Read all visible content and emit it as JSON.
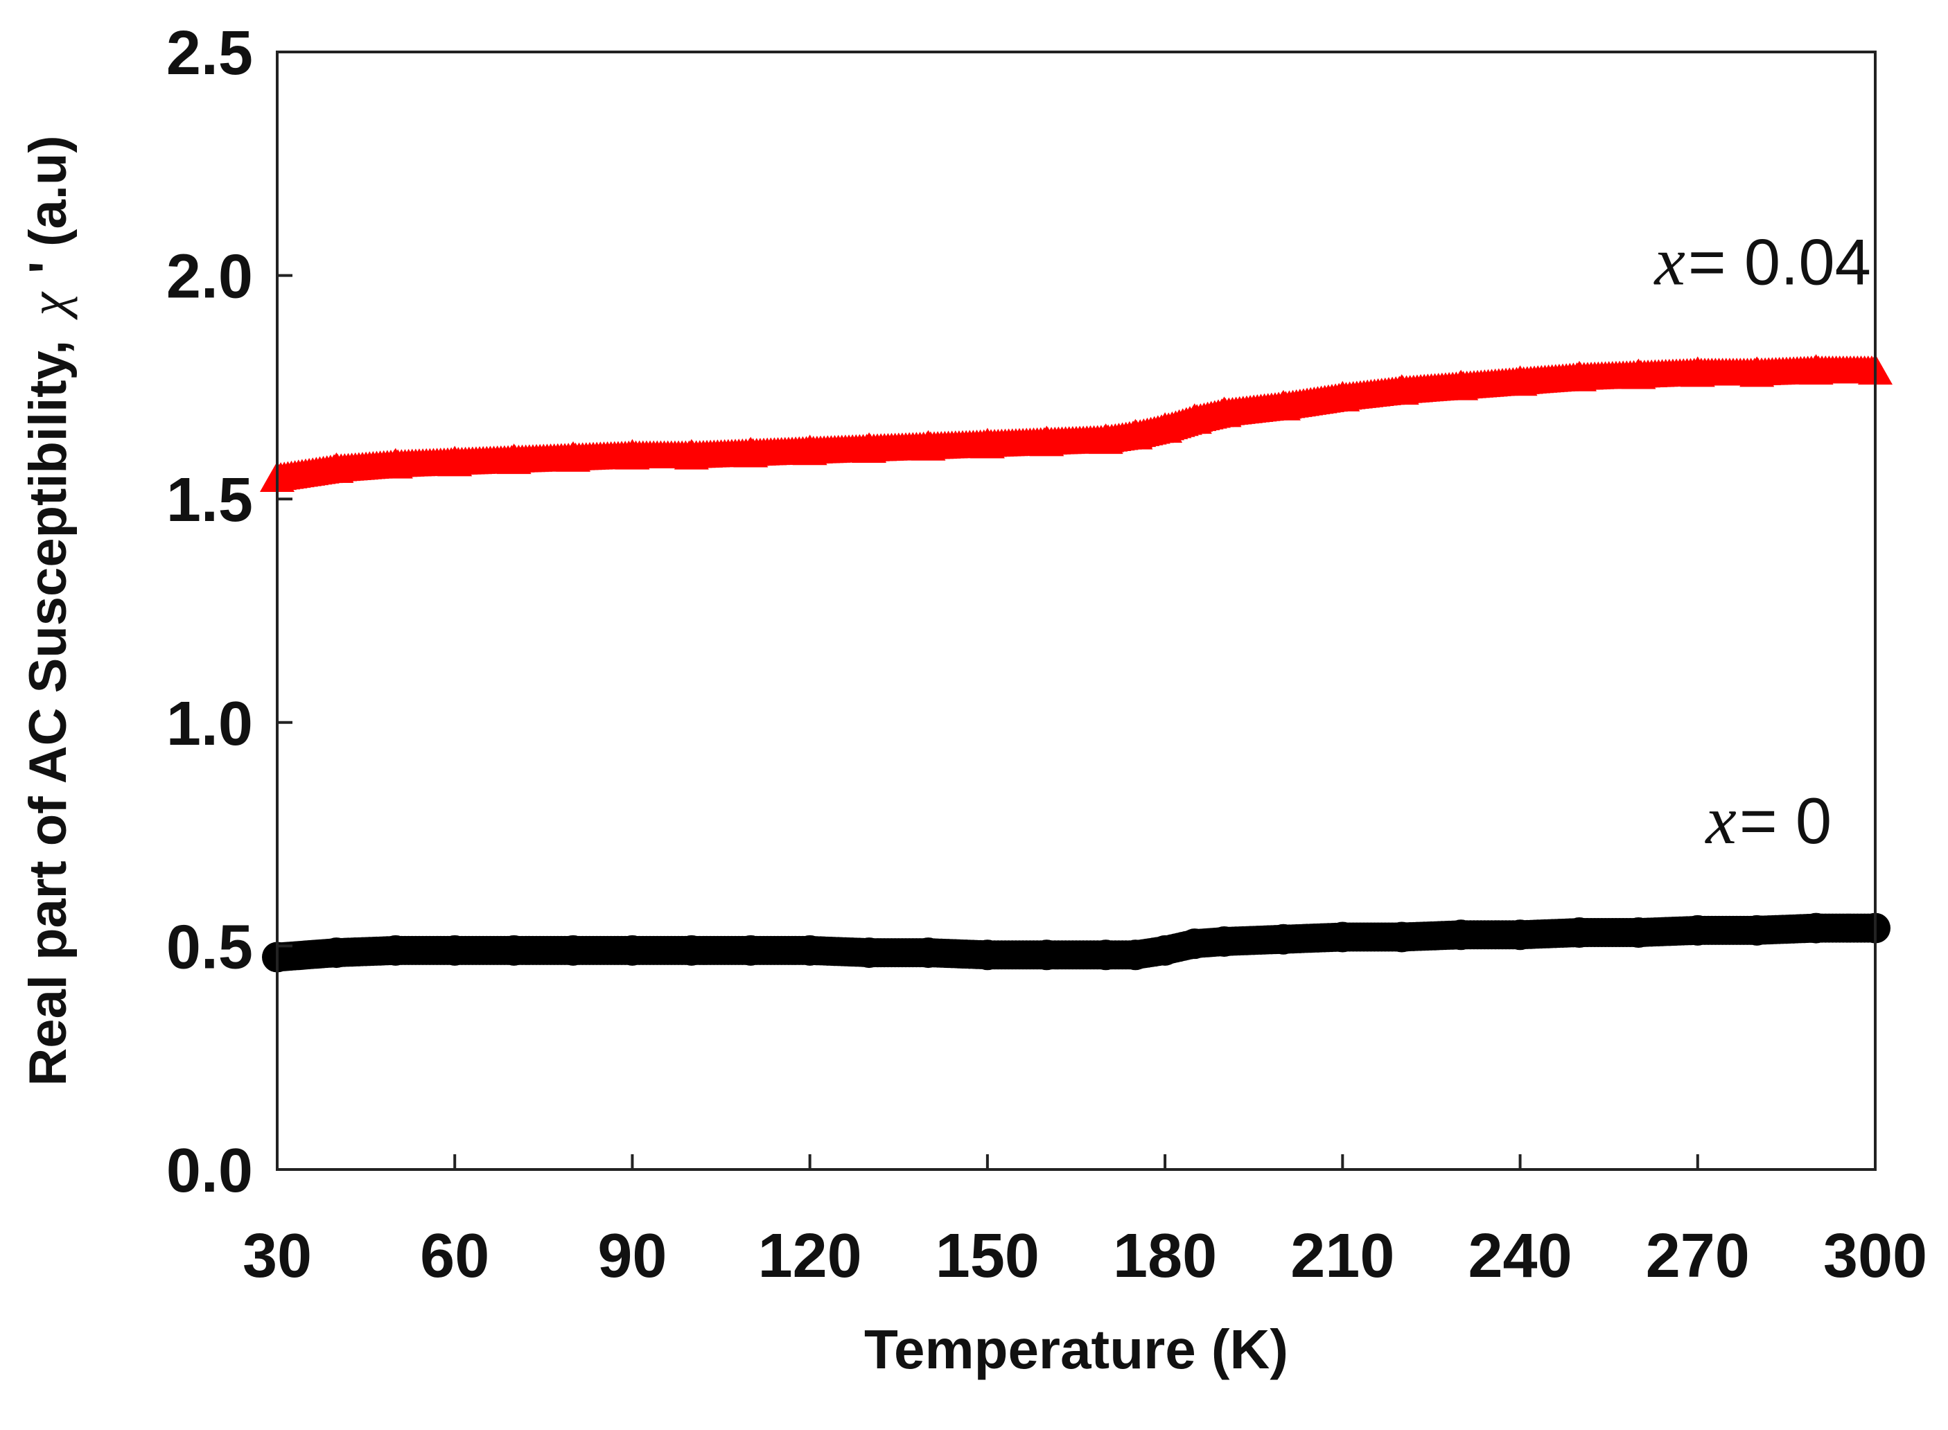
{
  "chart_data": {
    "type": "scatter",
    "title": "",
    "xlabel": "Temperature (K)",
    "ylabel": {
      "prefix": "Real part of AC Susceptibility,",
      "symbol": "χ",
      "suffix": "' (a.u)"
    },
    "xlim": [
      30,
      300
    ],
    "ylim": [
      0.0,
      2.5
    ],
    "x_ticks": [
      30,
      60,
      90,
      120,
      150,
      180,
      210,
      240,
      270,
      300
    ],
    "x_tick_labels": [
      "30",
      "60",
      "90",
      "120",
      "150",
      "180",
      "210",
      "240",
      "270",
      "300"
    ],
    "y_ticks": [
      0.0,
      0.5,
      1.0,
      1.5,
      2.0,
      2.5
    ],
    "y_tick_labels": [
      "0.0",
      "0.5",
      "1.0",
      "1.5",
      "2.0",
      "2.5"
    ],
    "grid": false,
    "series": [
      {
        "name": "x = 0.04",
        "marker": "triangle",
        "color": "#ff0000",
        "x": [
          30,
          40,
          50,
          60,
          70,
          80,
          90,
          100,
          110,
          120,
          130,
          140,
          150,
          160,
          170,
          175,
          180,
          185,
          190,
          200,
          210,
          220,
          230,
          240,
          250,
          260,
          270,
          280,
          290,
          300
        ],
        "y": [
          1.55,
          1.57,
          1.58,
          1.585,
          1.59,
          1.595,
          1.6,
          1.6,
          1.605,
          1.61,
          1.615,
          1.62,
          1.625,
          1.63,
          1.635,
          1.645,
          1.66,
          1.68,
          1.695,
          1.71,
          1.73,
          1.745,
          1.755,
          1.765,
          1.775,
          1.78,
          1.785,
          1.785,
          1.79,
          1.79
        ]
      },
      {
        "name": "x = 0",
        "marker": "circle",
        "color": "#000000",
        "x": [
          30,
          40,
          50,
          60,
          70,
          80,
          90,
          100,
          110,
          120,
          130,
          140,
          150,
          160,
          170,
          175,
          180,
          185,
          190,
          200,
          210,
          220,
          230,
          240,
          250,
          260,
          270,
          280,
          290,
          300
        ],
        "y": [
          0.475,
          0.485,
          0.49,
          0.49,
          0.49,
          0.49,
          0.49,
          0.49,
          0.49,
          0.49,
          0.485,
          0.485,
          0.48,
          0.48,
          0.48,
          0.48,
          0.49,
          0.505,
          0.51,
          0.515,
          0.52,
          0.52,
          0.525,
          0.525,
          0.53,
          0.53,
          0.535,
          0.535,
          0.54,
          0.54
        ]
      }
    ],
    "annotations": [
      {
        "id": "red",
        "var": "x",
        "text": " = 0.04",
        "at": [
          281,
          1.98
        ]
      },
      {
        "id": "black",
        "var": "x",
        "text": " = 0",
        "at": [
          282,
          0.73
        ]
      }
    ]
  }
}
